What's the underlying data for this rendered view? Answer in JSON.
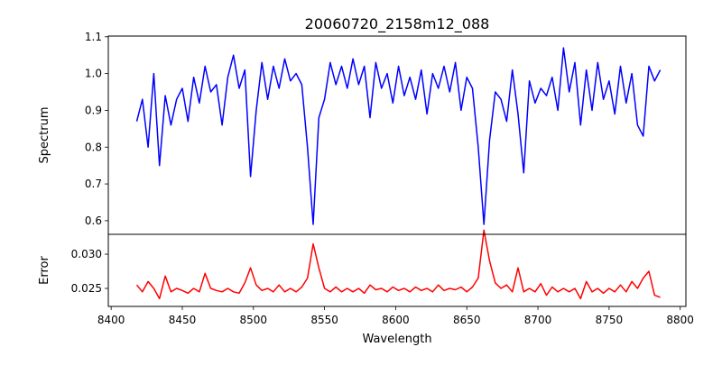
{
  "chart_data": {
    "type": "line",
    "title": "20060720_2158m12_088",
    "xlabel": "Wavelength",
    "xlim": [
      8398,
      8804
    ],
    "xticks": [
      "8400",
      "8450",
      "8500",
      "8550",
      "8600",
      "8650",
      "8700",
      "8750",
      "8800"
    ],
    "x_start": 8418,
    "x_step": 4,
    "panels": [
      {
        "name": "Spectrum",
        "ylabel": "Spectrum",
        "ylim": [
          0.563,
          1.102
        ],
        "yticks": [
          "0.6",
          "0.7",
          "0.8",
          "0.9",
          "1.0",
          "1.1"
        ],
        "color": "#0000ff",
        "values": [
          0.87,
          0.93,
          0.8,
          1.0,
          0.75,
          0.94,
          0.86,
          0.93,
          0.96,
          0.87,
          0.99,
          0.92,
          1.02,
          0.95,
          0.97,
          0.86,
          0.99,
          1.05,
          0.96,
          1.01,
          0.72,
          0.9,
          1.03,
          0.93,
          1.02,
          0.96,
          1.04,
          0.98,
          1.0,
          0.97,
          0.8,
          0.59,
          0.88,
          0.93,
          1.03,
          0.97,
          1.02,
          0.96,
          1.04,
          0.97,
          1.02,
          0.88,
          1.03,
          0.96,
          1.0,
          0.92,
          1.02,
          0.94,
          0.99,
          0.93,
          1.01,
          0.89,
          1.0,
          0.96,
          1.02,
          0.95,
          1.03,
          0.9,
          0.99,
          0.96,
          0.8,
          0.59,
          0.82,
          0.95,
          0.93,
          0.87,
          1.01,
          0.89,
          0.73,
          0.98,
          0.92,
          0.96,
          0.94,
          0.99,
          0.9,
          1.07,
          0.95,
          1.03,
          0.86,
          1.01,
          0.9,
          1.03,
          0.93,
          0.98,
          0.89,
          1.02,
          0.92,
          1.0,
          0.86,
          0.83,
          1.02,
          0.98,
          1.01
        ]
      },
      {
        "name": "Error",
        "ylabel": "Error",
        "ylim": [
          0.02237,
          0.0329
        ],
        "yticks": [
          "0.025",
          "0.030"
        ],
        "color": "#ff0000",
        "values": [
          0.0255,
          0.0245,
          0.026,
          0.025,
          0.0235,
          0.0268,
          0.0245,
          0.025,
          0.0247,
          0.0243,
          0.025,
          0.0245,
          0.0272,
          0.025,
          0.0247,
          0.0245,
          0.025,
          0.0245,
          0.0243,
          0.0258,
          0.028,
          0.0255,
          0.0247,
          0.025,
          0.0245,
          0.0255,
          0.0245,
          0.025,
          0.0245,
          0.0252,
          0.0265,
          0.0315,
          0.028,
          0.025,
          0.0245,
          0.0252,
          0.0245,
          0.025,
          0.0245,
          0.025,
          0.0243,
          0.0255,
          0.0248,
          0.025,
          0.0245,
          0.0252,
          0.0247,
          0.025,
          0.0245,
          0.0252,
          0.0247,
          0.025,
          0.0245,
          0.0255,
          0.0247,
          0.025,
          0.0248,
          0.0252,
          0.0245,
          0.0252,
          0.0265,
          0.0335,
          0.029,
          0.0258,
          0.025,
          0.0255,
          0.0245,
          0.028,
          0.0245,
          0.025,
          0.0245,
          0.0257,
          0.024,
          0.0252,
          0.0245,
          0.025,
          0.0245,
          0.025,
          0.0235,
          0.026,
          0.0245,
          0.025,
          0.0243,
          0.025,
          0.0245,
          0.0255,
          0.0245,
          0.026,
          0.025,
          0.0265,
          0.0275,
          0.024,
          0.0237
        ]
      }
    ]
  }
}
